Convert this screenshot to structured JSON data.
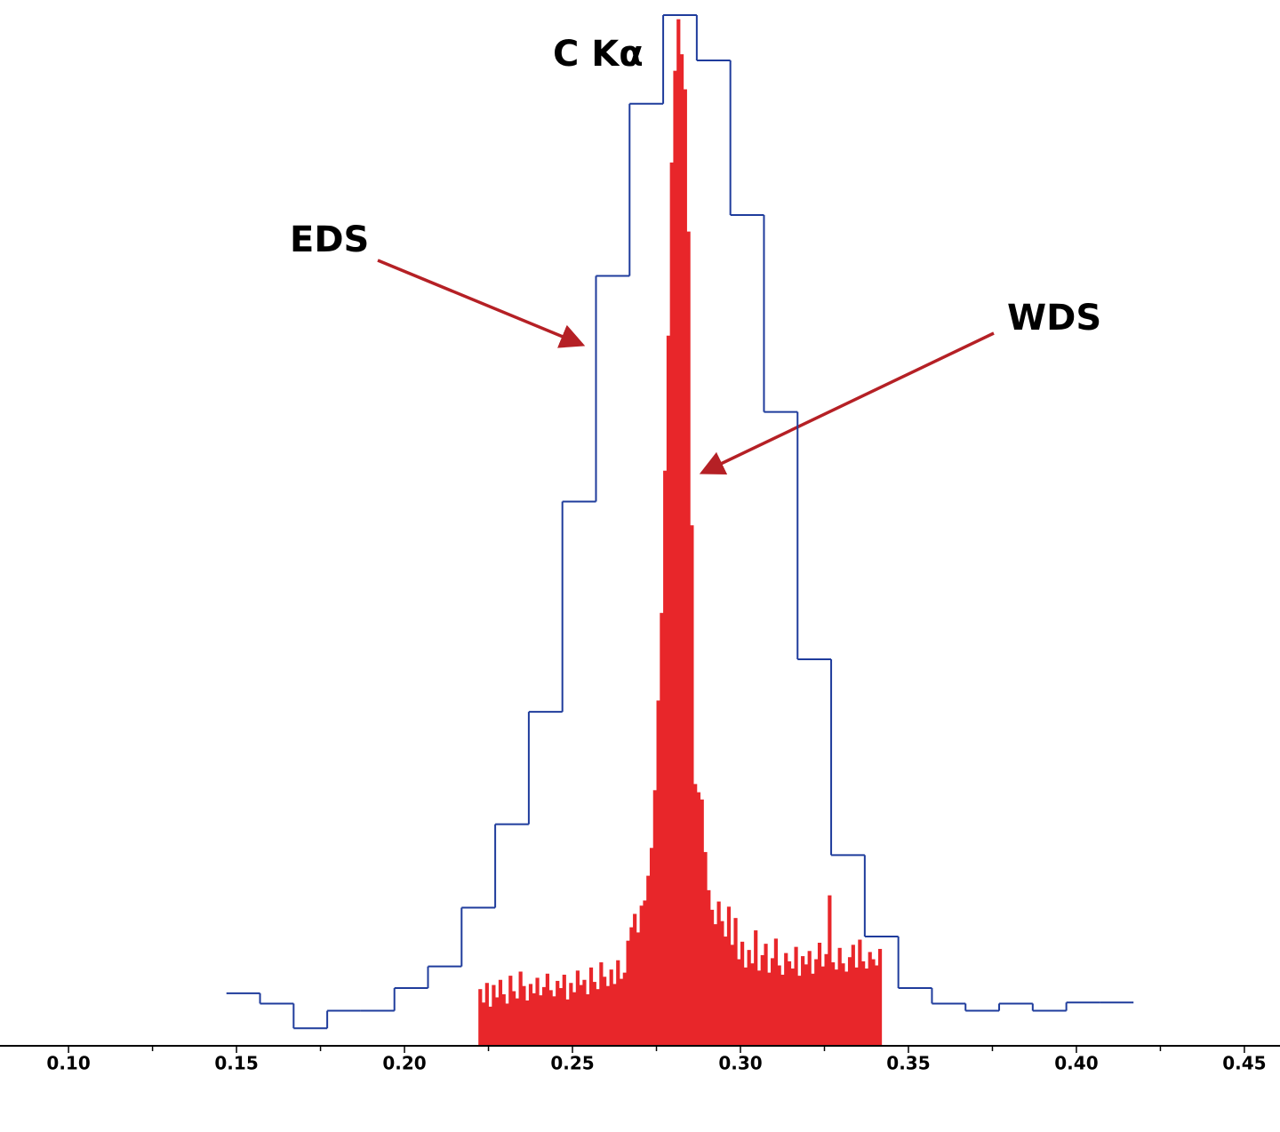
{
  "chart_data": {
    "type": "histogram",
    "annotations": [
      "C Kα"
    ],
    "xlim": [
      0.0796,
      0.4606
    ],
    "ylim": [
      0,
      100
    ],
    "xticks": [
      {
        "value": 0.1,
        "label": "0.10"
      },
      {
        "value": 0.15,
        "label": "0.15"
      },
      {
        "value": 0.2,
        "label": "0.20"
      },
      {
        "value": 0.25,
        "label": "0.25"
      },
      {
        "value": 0.3,
        "label": "0.30"
      },
      {
        "value": 0.35,
        "label": "0.35"
      },
      {
        "value": 0.4,
        "label": "0.40"
      },
      {
        "value": 0.45,
        "label": "0.45"
      }
    ],
    "minor_xticks": [
      0.125,
      0.175,
      0.225,
      0.275,
      0.325,
      0.375,
      0.425
    ],
    "series": [
      {
        "name": "EDS",
        "color": "#1f3c9c",
        "style": "step",
        "bins": [
          0.147,
          0.157,
          0.167,
          0.177,
          0.187,
          0.197,
          0.207,
          0.217,
          0.227,
          0.237,
          0.247,
          0.257,
          0.267,
          0.277,
          0.287,
          0.297,
          0.307,
          0.317,
          0.327,
          0.337,
          0.347,
          0.357,
          0.367,
          0.377,
          0.387,
          0.397,
          0.407,
          0.417
        ],
        "values": [
          5.1,
          4.1,
          1.7,
          3.4,
          3.4,
          5.6,
          7.7,
          13.4,
          21.5,
          32.4,
          52.8,
          74.7,
          91.4,
          100,
          95.6,
          80.6,
          61.5,
          37.5,
          18.5,
          10.6,
          5.6,
          4.1,
          3.4,
          4.1,
          3.4,
          4.2,
          4.2
        ]
      },
      {
        "name": "WDS",
        "color": "#e8262a",
        "style": "filled",
        "bins": [
          0.222,
          0.223,
          0.224,
          0.225,
          0.226,
          0.227,
          0.228,
          0.229,
          0.23,
          0.231,
          0.232,
          0.233,
          0.234,
          0.235,
          0.236,
          0.237,
          0.238,
          0.239,
          0.24,
          0.241,
          0.242,
          0.243,
          0.244,
          0.245,
          0.246,
          0.247,
          0.248,
          0.249,
          0.25,
          0.251,
          0.252,
          0.253,
          0.254,
          0.255,
          0.256,
          0.257,
          0.258,
          0.259,
          0.26,
          0.261,
          0.262,
          0.263,
          0.264,
          0.265,
          0.266,
          0.267,
          0.268,
          0.269,
          0.27,
          0.271,
          0.272,
          0.273,
          0.274,
          0.275,
          0.276,
          0.277,
          0.278,
          0.279,
          0.28,
          0.281,
          0.282,
          0.283,
          0.284,
          0.285,
          0.286,
          0.287,
          0.288,
          0.289,
          0.29,
          0.291,
          0.292,
          0.293,
          0.294,
          0.295,
          0.296,
          0.297,
          0.298,
          0.299,
          0.3,
          0.301,
          0.302,
          0.303,
          0.304,
          0.305,
          0.306,
          0.307,
          0.308,
          0.309,
          0.31,
          0.311,
          0.312,
          0.313,
          0.314,
          0.315,
          0.316,
          0.317,
          0.318,
          0.319,
          0.32,
          0.321,
          0.322,
          0.323,
          0.324,
          0.325,
          0.326,
          0.327,
          0.328,
          0.329,
          0.33,
          0.331,
          0.332,
          0.333,
          0.334,
          0.335,
          0.336,
          0.337,
          0.338,
          0.339,
          0.34,
          0.341,
          0.342
        ],
        "values": [
          5.5,
          4.2,
          6.1,
          3.8,
          5.9,
          4.7,
          6.4,
          5.0,
          4.1,
          6.8,
          5.3,
          4.6,
          7.2,
          5.8,
          4.4,
          6.0,
          5.1,
          6.6,
          4.9,
          5.7,
          7.0,
          5.4,
          4.8,
          6.3,
          5.6,
          6.9,
          4.5,
          6.1,
          5.2,
          7.3,
          5.9,
          6.4,
          5.0,
          7.6,
          6.2,
          5.5,
          8.1,
          6.7,
          5.8,
          7.4,
          6.0,
          8.3,
          6.5,
          7.1,
          10.2,
          11.5,
          12.8,
          11.0,
          13.6,
          14.1,
          16.5,
          19.2,
          24.8,
          33.5,
          42.0,
          55.8,
          68.9,
          85.7,
          94.6,
          99.6,
          96.2,
          92.8,
          79.0,
          50.5,
          25.4,
          24.6,
          23.9,
          18.8,
          15.1,
          13.2,
          11.8,
          14.0,
          12.1,
          10.6,
          13.5,
          9.8,
          12.4,
          8.4,
          10.1,
          7.6,
          9.3,
          8.0,
          11.2,
          7.3,
          8.8,
          9.9,
          7.1,
          8.5,
          10.4,
          7.8,
          6.9,
          9.0,
          8.2,
          7.5,
          9.6,
          6.8,
          8.7,
          7.9,
          9.2,
          7.0,
          8.4,
          10.0,
          7.7,
          8.9,
          14.6,
          8.1,
          7.4,
          9.5,
          8.0,
          7.2,
          8.6,
          9.8,
          7.6,
          10.3,
          8.2,
          7.5,
          9.1,
          8.4,
          7.8,
          9.4
        ]
      }
    ]
  }
}
